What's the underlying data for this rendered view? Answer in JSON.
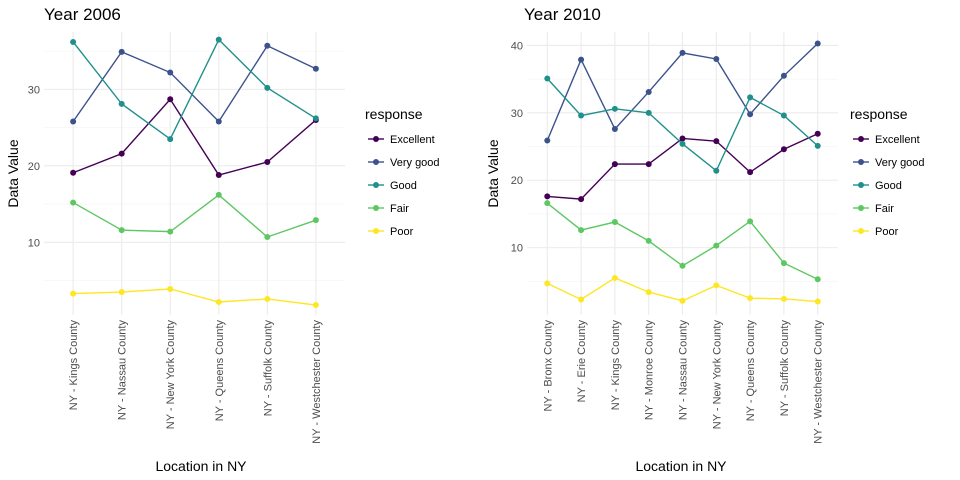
{
  "legend": {
    "title": "response",
    "items": [
      {
        "label": "Excellent",
        "color": "#440154"
      },
      {
        "label": "Very good",
        "color": "#3B528B"
      },
      {
        "label": "Good",
        "color": "#21908C"
      },
      {
        "label": "Fair",
        "color": "#5DC863"
      },
      {
        "label": "Poor",
        "color": "#FDE725"
      }
    ]
  },
  "chart_data": [
    {
      "type": "line",
      "title": "Year 2006",
      "xlabel": "Location in NY",
      "ylabel": "Data Value",
      "ylim": [
        0.5,
        37.5
      ],
      "yticks": [
        10,
        20,
        30
      ],
      "grid": true,
      "categories": [
        "NY - Kings County",
        "NY - Nassau County",
        "NY - New York County",
        "NY - Queens County",
        "NY - Suffolk County",
        "NY - Westchester County"
      ],
      "series": [
        {
          "name": "Excellent",
          "values": [
            19.1,
            21.6,
            28.7,
            18.8,
            20.5,
            26.0
          ]
        },
        {
          "name": "Very good",
          "values": [
            25.8,
            34.9,
            32.2,
            25.8,
            35.7,
            32.7
          ]
        },
        {
          "name": "Good",
          "values": [
            36.2,
            28.1,
            23.5,
            36.5,
            30.2,
            26.2
          ]
        },
        {
          "name": "Fair",
          "values": [
            15.2,
            11.6,
            11.4,
            16.2,
            10.7,
            12.9
          ]
        },
        {
          "name": "Poor",
          "values": [
            3.3,
            3.5,
            3.9,
            2.2,
            2.6,
            1.8
          ]
        }
      ]
    },
    {
      "type": "line",
      "title": "Year 2010",
      "xlabel": "Location in NY",
      "ylabel": "Data Value",
      "ylim": [
        0.0,
        42.0
      ],
      "yticks": [
        10,
        20,
        30,
        40
      ],
      "grid": true,
      "categories": [
        "NY - Bronx County",
        "NY - Erie County",
        "NY - Kings County",
        "NY - Monroe County",
        "NY - Nassau County",
        "NY - New York County",
        "NY - Queens County",
        "NY - Suffolk County",
        "NY - Westchester County"
      ],
      "series": [
        {
          "name": "Excellent",
          "values": [
            17.6,
            17.2,
            22.4,
            22.4,
            26.2,
            25.8,
            21.2,
            24.6,
            26.9
          ]
        },
        {
          "name": "Very good",
          "values": [
            25.9,
            37.9,
            27.6,
            33.1,
            38.9,
            38.0,
            29.8,
            35.5,
            40.3
          ]
        },
        {
          "name": "Good",
          "values": [
            35.1,
            29.6,
            30.6,
            30.0,
            25.4,
            21.4,
            32.3,
            29.6,
            25.1
          ]
        },
        {
          "name": "Fair",
          "values": [
            16.6,
            12.6,
            13.8,
            11.0,
            7.3,
            10.3,
            13.9,
            7.7,
            5.3
          ]
        },
        {
          "name": "Poor",
          "values": [
            4.7,
            2.3,
            5.5,
            3.4,
            2.1,
            4.4,
            2.5,
            2.4,
            2.0
          ]
        }
      ]
    }
  ]
}
